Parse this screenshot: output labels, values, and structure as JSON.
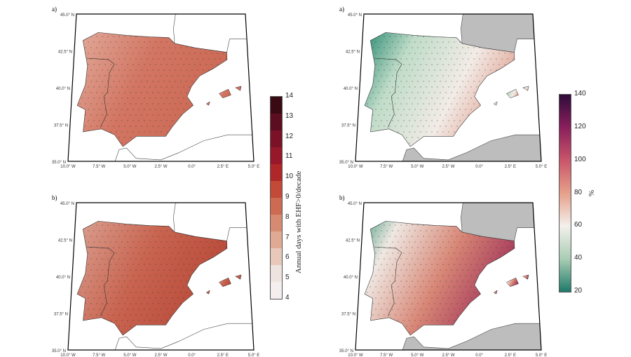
{
  "panels": [
    {
      "label": "a)",
      "scheme": "red",
      "gray_land": false
    },
    {
      "label": "a)",
      "scheme": "diverging_low",
      "gray_land": true
    },
    {
      "label": "b)",
      "scheme": "red_dark",
      "gray_land": false
    },
    {
      "label": "b)",
      "scheme": "diverging_high",
      "gray_land": true
    }
  ],
  "lat_labels": [
    "45.0° N",
    "42.5° N",
    "40.0° N",
    "37.5° N",
    "35.0° N"
  ],
  "lon_labels": [
    "10.0° W",
    "7.5° W",
    "5.0° W",
    "2.5° W",
    "0.0°",
    "2.5° E",
    "5.0° E"
  ],
  "colorbar_left": {
    "label": "Annual days with EHF>0/decade",
    "ticks": [
      "14",
      "13",
      "12",
      "11",
      "10",
      "9",
      "8",
      "7",
      "6",
      "5",
      "4"
    ],
    "colors": [
      "#3a0a14",
      "#5c0d20",
      "#7a1126",
      "#97182a",
      "#b0272a",
      "#c24a36",
      "#cc6a52",
      "#d68a72",
      "#e0a994",
      "#e8c8bb",
      "#efe3df",
      "#f4efee"
    ]
  },
  "colorbar_right": {
    "label": "%",
    "ticks": [
      "140",
      "120",
      "100",
      "80",
      "60",
      "40",
      "20"
    ],
    "colors": [
      "#2e0c3a",
      "#8a1f5c",
      "#c9566a",
      "#e6a08a",
      "#f4f0ec",
      "#a9cdb4",
      "#1f7a6a"
    ]
  }
}
